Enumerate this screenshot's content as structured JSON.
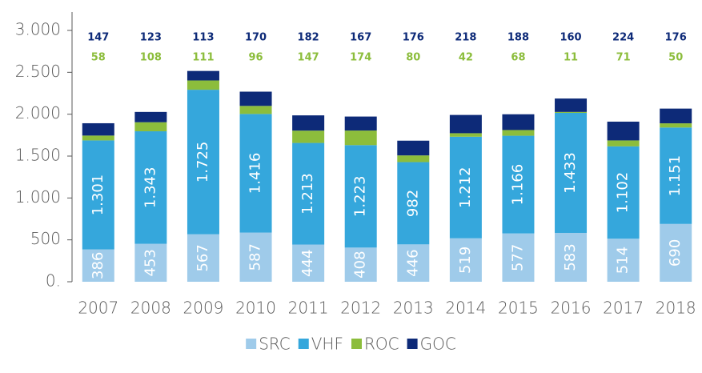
{
  "chart_data": {
    "type": "stacked_bar",
    "categories": [
      "2007",
      "2008",
      "2009",
      "2010",
      "2011",
      "2012",
      "2013",
      "2014",
      "2015",
      "2016",
      "2017",
      "2018"
    ],
    "series": [
      {
        "name": "SRC",
        "color": "#9fcbea",
        "values": [
          386,
          453,
          567,
          587,
          444,
          408,
          446,
          519,
          577,
          583,
          514,
          690
        ]
      },
      {
        "name": "VHF",
        "color": "#35a7dc",
        "values": [
          1301,
          1343,
          1725,
          1416,
          1213,
          1223,
          982,
          1212,
          1166,
          1433,
          1102,
          1151
        ],
        "value_labels": [
          "1.301",
          "1.343",
          "1.725",
          "1.416",
          "1.213",
          "1.223",
          "982",
          "1.212",
          "1.166",
          "1.433",
          "1.102",
          "1.151"
        ]
      },
      {
        "name": "ROC",
        "color": "#8cbd3c",
        "values": [
          58,
          108,
          111,
          96,
          147,
          174,
          80,
          42,
          68,
          11,
          71,
          50
        ]
      },
      {
        "name": "GOC",
        "color": "#0d2a78",
        "values": [
          147,
          123,
          113,
          170,
          182,
          167,
          176,
          218,
          188,
          160,
          224,
          176
        ]
      }
    ],
    "ylim": [
      0,
      3000
    ],
    "yticks": [
      {
        "value": 0,
        "label": "0."
      },
      500,
      {
        "value": 1000,
        "label": "1.000"
      },
      {
        "value": 1500,
        "label": "1.500"
      },
      {
        "value": 2000,
        "label": "2.000"
      },
      {
        "value": 2500,
        "label": "2.500"
      },
      {
        "value": 3000,
        "label": "3.000"
      }
    ],
    "grid": false,
    "legend": "bottom"
  }
}
